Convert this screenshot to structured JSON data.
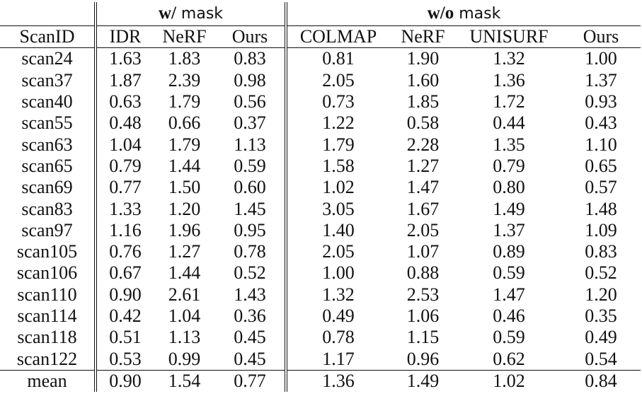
{
  "groups": {
    "w_mask": {
      "bold": "w/",
      "rest": " mask"
    },
    "wo_mask": {
      "bold": "w/o",
      "rest": " mask"
    }
  },
  "columns": [
    "ScanID",
    "IDR",
    "NeRF",
    "Ours",
    "COLMAP",
    "NeRF",
    "UNISURF",
    "Ours"
  ],
  "rows": [
    {
      "id": "scan24",
      "vals": [
        "1.63",
        "1.83",
        "0.83",
        "0.81",
        "1.90",
        "1.32",
        "1.00"
      ],
      "bold": [
        false,
        false,
        true,
        true,
        false,
        false,
        false
      ]
    },
    {
      "id": "scan37",
      "vals": [
        "1.87",
        "2.39",
        "0.98",
        "2.05",
        "1.60",
        "1.36",
        "1.37"
      ],
      "bold": [
        false,
        false,
        true,
        false,
        false,
        true,
        false
      ]
    },
    {
      "id": "scan40",
      "vals": [
        "0.63",
        "1.79",
        "0.56",
        "0.73",
        "1.85",
        "1.72",
        "0.93"
      ],
      "bold": [
        false,
        false,
        true,
        true,
        false,
        false,
        false
      ]
    },
    {
      "id": "scan55",
      "vals": [
        "0.48",
        "0.66",
        "0.37",
        "1.22",
        "0.58",
        "0.44",
        "0.43"
      ],
      "bold": [
        false,
        false,
        true,
        false,
        false,
        false,
        true
      ]
    },
    {
      "id": "scan63",
      "vals": [
        "1.04",
        "1.79",
        "1.13",
        "1.79",
        "2.28",
        "1.35",
        "1.10"
      ],
      "bold": [
        true,
        false,
        false,
        false,
        false,
        false,
        true
      ]
    },
    {
      "id": "scan65",
      "vals": [
        "0.79",
        "1.44",
        "0.59",
        "1.58",
        "1.27",
        "0.79",
        "0.65"
      ],
      "bold": [
        false,
        false,
        true,
        false,
        false,
        false,
        true
      ]
    },
    {
      "id": "scan69",
      "vals": [
        "0.77",
        "1.50",
        "0.60",
        "1.02",
        "1.47",
        "0.80",
        "0.57"
      ],
      "bold": [
        false,
        false,
        true,
        false,
        false,
        false,
        true
      ]
    },
    {
      "id": "scan83",
      "vals": [
        "1.33",
        "1.20",
        "1.45",
        "3.05",
        "1.67",
        "1.49",
        "1.48"
      ],
      "bold": [
        false,
        true,
        false,
        false,
        false,
        false,
        true
      ]
    },
    {
      "id": "scan97",
      "vals": [
        "1.16",
        "1.96",
        "0.95",
        "1.40",
        "2.05",
        "1.37",
        "1.09"
      ],
      "bold": [
        false,
        false,
        true,
        false,
        false,
        false,
        true
      ]
    },
    {
      "id": "scan105",
      "vals": [
        "0.76",
        "1.27",
        "0.78",
        "2.05",
        "1.07",
        "0.89",
        "0.83"
      ],
      "bold": [
        true,
        false,
        false,
        false,
        false,
        false,
        true
      ]
    },
    {
      "id": "scan106",
      "vals": [
        "0.67",
        "1.44",
        "0.52",
        "1.00",
        "0.88",
        "0.59",
        "0.52"
      ],
      "bold": [
        false,
        false,
        true,
        false,
        false,
        false,
        true
      ]
    },
    {
      "id": "scan110",
      "vals": [
        "0.90",
        "2.61",
        "1.43",
        "1.32",
        "2.53",
        "1.47",
        "1.20"
      ],
      "bold": [
        true,
        false,
        false,
        false,
        false,
        false,
        true
      ]
    },
    {
      "id": "scan114",
      "vals": [
        "0.42",
        "1.04",
        "0.36",
        "0.49",
        "1.06",
        "0.46",
        "0.35"
      ],
      "bold": [
        false,
        false,
        true,
        false,
        false,
        false,
        true
      ]
    },
    {
      "id": "scan118",
      "vals": [
        "0.51",
        "1.13",
        "0.45",
        "0.78",
        "1.15",
        "0.59",
        "0.49"
      ],
      "bold": [
        false,
        false,
        true,
        false,
        false,
        false,
        true
      ]
    },
    {
      "id": "scan122",
      "vals": [
        "0.53",
        "0.99",
        "0.45",
        "1.17",
        "0.96",
        "0.62",
        "0.54"
      ],
      "bold": [
        false,
        false,
        true,
        false,
        false,
        false,
        true
      ]
    }
  ],
  "mean": {
    "id": "mean",
    "vals": [
      "0.90",
      "1.54",
      "0.77",
      "1.36",
      "1.49",
      "1.02",
      "0.84"
    ],
    "bold": [
      false,
      false,
      true,
      false,
      false,
      false,
      true
    ]
  }
}
